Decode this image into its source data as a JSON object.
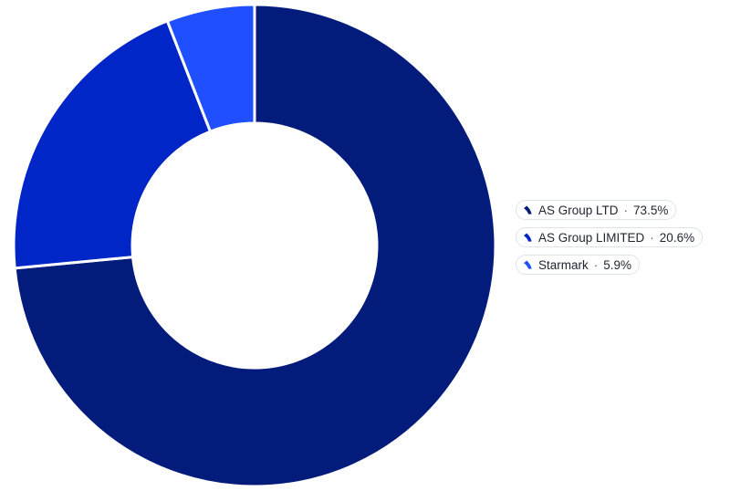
{
  "chart_data": {
    "type": "pie",
    "donut": true,
    "labels": [
      "AS Group LTD",
      "AS Group LIMITED",
      "Starmark"
    ],
    "values": [
      73.5,
      20.6,
      5.9
    ],
    "value_suffix": "%",
    "colors": [
      "#031c7c",
      "#0026c8",
      "#1f4fff"
    ],
    "legend": "right"
  }
}
